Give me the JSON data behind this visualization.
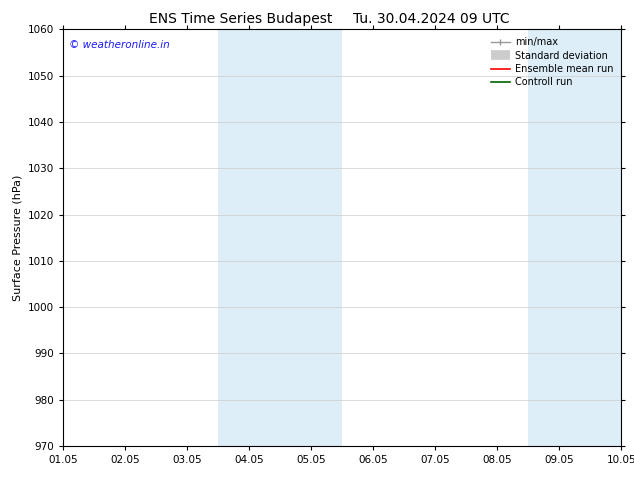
{
  "title": "ENS Time Series Budapest",
  "title2": "Tu. 30.04.2024 09 UTC",
  "ylabel": "Surface Pressure (hPa)",
  "ylim": [
    970,
    1060
  ],
  "yticks": [
    970,
    980,
    990,
    1000,
    1010,
    1020,
    1030,
    1040,
    1050,
    1060
  ],
  "xlabels": [
    "01.05",
    "02.05",
    "03.05",
    "04.05",
    "05.05",
    "06.05",
    "07.05",
    "08.05",
    "09.05",
    "10.05"
  ],
  "num_xticks": 10,
  "shade_regions": [
    {
      "xstart": 3,
      "xend": 5
    },
    {
      "xstart": 8,
      "xend": 10
    }
  ],
  "shade_color": "#ddeef8",
  "watermark": "© weatheronline.in",
  "watermark_color": "#1a1aff",
  "bg_color": "#ffffff",
  "grid_color": "#cccccc",
  "title_fontsize": 10,
  "tick_fontsize": 7.5,
  "ylabel_fontsize": 8,
  "legend_fontsize": 7,
  "spine_color": "#000000"
}
